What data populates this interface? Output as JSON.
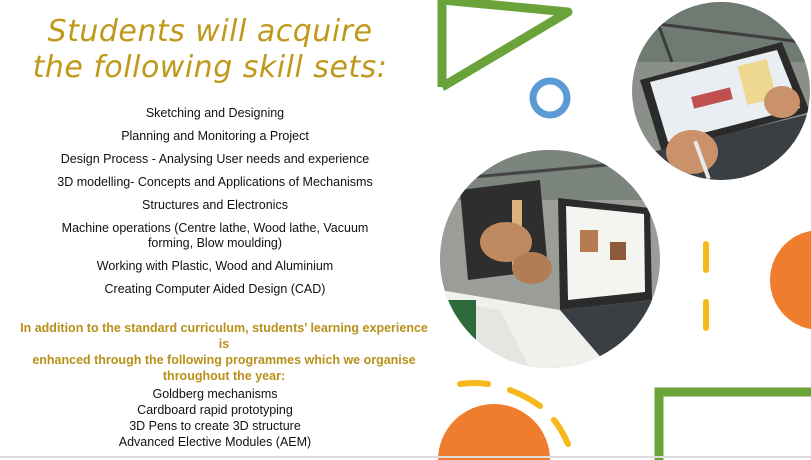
{
  "title": {
    "line1": "Students will acquire",
    "line2": "the following skill sets:"
  },
  "skills": [
    "Sketching and Designing",
    "Planning and Monitoring a Project",
    "Design Process -  Analysing User needs and experience",
    "3D  modelling- Concepts and Applications of Mechanisms",
    "Structures and Electronics",
    "Machine operations (Centre lathe, Wood lathe, Vacuum",
    "forming, Blow moulding)",
    "Working with Plastic, Wood and Aluminium",
    "Creating Computer Aided Design (CAD)"
  ],
  "intro": {
    "line1": "In addition to the standard curriculum, students’ learning experience is",
    "line2": "enhanced through the following programmes which we organise",
    "line3": "throughout the year:"
  },
  "programmes": [
    "Goldberg mechanisms",
    "Cardboard rapid  prototyping",
    "3D Pens to create 3D structure",
    "Advanced Elective Modules (AEM)"
  ],
  "colors": {
    "heading_gold": "#c0981a",
    "green": "#6aa33a",
    "blue": "#5b9bd5",
    "orange": "#ef7d2e",
    "yellow": "#f6b81b"
  }
}
